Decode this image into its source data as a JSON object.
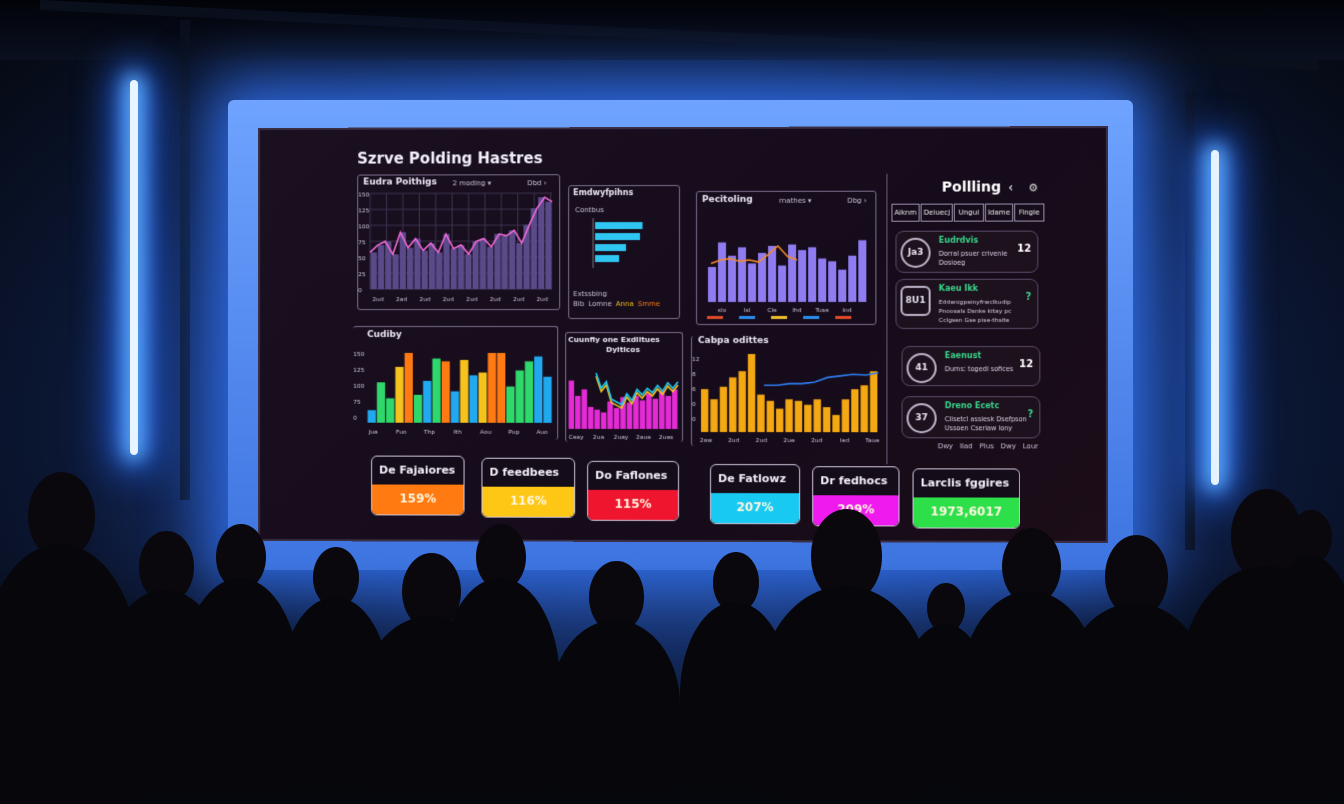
{
  "dashboard": {
    "title": "Szrve Polding Hastres",
    "panel_trend": {
      "title": "Eudra Poithigs",
      "filter": "2 moding ▾",
      "control": "Dbd ›",
      "y_ticks": [
        "150",
        "125",
        "100",
        "75",
        "50",
        "25",
        "0"
      ],
      "x_ticks": [
        "2ud",
        "2ad",
        "2ud",
        "2ud",
        "2ud",
        "2ud",
        "2ud",
        "2ud"
      ],
      "values": [
        40,
        48,
        52,
        38,
        62,
        45,
        55,
        42,
        50,
        40,
        60,
        44,
        48,
        38,
        52,
        55,
        46,
        60,
        58,
        64,
        50,
        70,
        88,
        100,
        95
      ]
    },
    "panel_hbar": {
      "title": "Emdwyfpihns",
      "subtitle": "Contbus",
      "legend_title": "Extssbing",
      "legend": [
        "Blb",
        "Lomne",
        "Anna",
        "Smme"
      ],
      "values": [
        95,
        90,
        62,
        48
      ],
      "bar_color": "#2fc6f2"
    },
    "panel_polls": {
      "title": "Pecitoling",
      "filter": "rnathes ▾",
      "control": "Dbg ›",
      "values": [
        50,
        85,
        66,
        78,
        55,
        70,
        80,
        52,
        82,
        74,
        78,
        62,
        58,
        46,
        66,
        88
      ],
      "line": [
        55,
        60,
        62,
        58,
        60,
        57,
        68,
        80,
        65,
        60
      ],
      "x_ticks": [
        "xlo",
        "Isl",
        "Cle",
        "Ihd",
        "Tuse",
        "Ind"
      ]
    },
    "panel_multi": {
      "title": "Cudiby",
      "y_ticks": [
        "150",
        "125",
        "100",
        "75",
        "0"
      ],
      "x_ticks": [
        "Jua",
        "Fuo",
        "Thp",
        "Ith",
        "Aou",
        "Pup",
        "Auo"
      ],
      "values": [
        18,
        58,
        35,
        80,
        100,
        40,
        60,
        92,
        88,
        45,
        90,
        68,
        72,
        100,
        100,
        52,
        75,
        88,
        95,
        66
      ],
      "colors": [
        "#21a9ef",
        "#2fd86a",
        "#2fd86a",
        "#f6c21c",
        "#ff7a12",
        "#2fd86a",
        "#21a9ef",
        "#2fd86a",
        "#ff7a12",
        "#21a9ef",
        "#f6c21c",
        "#21a9ef",
        "#f6c21c",
        "#ff7a12",
        "#ff7a12",
        "#2fd86a",
        "#2fd86a",
        "#2fd86a",
        "#21a9ef",
        "#21a9ef"
      ]
    },
    "panel_area": {
      "title": "Cuunfiy one Exdiltues",
      "subtitle": "Dyiticos",
      "x_ticks": [
        "Ceay",
        "2ua",
        "2uay",
        "2aue",
        "2ues"
      ],
      "values": [
        88,
        60,
        72,
        40,
        35,
        30,
        50,
        38,
        58,
        48,
        60,
        52,
        65,
        55,
        70,
        60,
        72
      ]
    },
    "panel_orange": {
      "title": "Cabpa odittes",
      "y_ticks": [
        "12",
        "8",
        "6",
        "0",
        "0"
      ],
      "x_ticks": [
        "2aw",
        "2ud",
        "2ud",
        "2ue",
        "2ud",
        "Ied",
        "Taue"
      ],
      "values": [
        55,
        42,
        58,
        70,
        78,
        100,
        48,
        40,
        30,
        42,
        40,
        35,
        42,
        32,
        22,
        42,
        55,
        60,
        78
      ],
      "line": [
        60,
        60,
        62,
        62,
        64,
        70,
        72,
        74,
        73,
        76
      ]
    },
    "side": {
      "title": "Pollling",
      "back_icon": "chevron-left-icon",
      "settings_icon": "gear-icon",
      "tabs": [
        "Aiknm",
        "Deiuecj",
        "Ungui",
        "Idame",
        "Fingie"
      ],
      "cards": [
        {
          "icon": "Ja3",
          "title": "Eudrdvis",
          "desc": "Dorral psuer crivenie Dosioeg",
          "badge": "12"
        },
        {
          "icon": "8U1",
          "title": "Kaeu Ikk",
          "desc": "Eddenigpeinyfrwclkudip Pnoosals Dsnke kitay pc Cclgsen Gse pise-thsite",
          "badge": "?"
        },
        {
          "icon": "41",
          "title": "Eaenust",
          "desc": "Dums: togedi sofices",
          "badge": "12"
        },
        {
          "icon": "37",
          "title": "Dreno Ecetc",
          "desc": "Clisetcl assiesk Dsefpson Ussoen Cseriaw lony",
          "badge": "?"
        }
      ],
      "footer": [
        "Dwy",
        "Ilad",
        "Plus",
        "Dwy",
        "Lour"
      ]
    },
    "kpis": [
      {
        "label": "De Fajaiores",
        "value": "159%",
        "color": "#ff7a10"
      },
      {
        "label": "D feedbees",
        "value": "116%",
        "color": "#ffc715"
      },
      {
        "label": "Do Faflones",
        "value": "115%",
        "color": "#f0152e"
      },
      {
        "label": "De Fatlowz",
        "value": "207%",
        "color": "#18c9f2"
      },
      {
        "label": "Dr fedhocs",
        "value": "209%",
        "color": "#ef1bee"
      },
      {
        "label": "Larclis fggires",
        "value": "1973,6017",
        "color": "#2de04a"
      }
    ]
  }
}
